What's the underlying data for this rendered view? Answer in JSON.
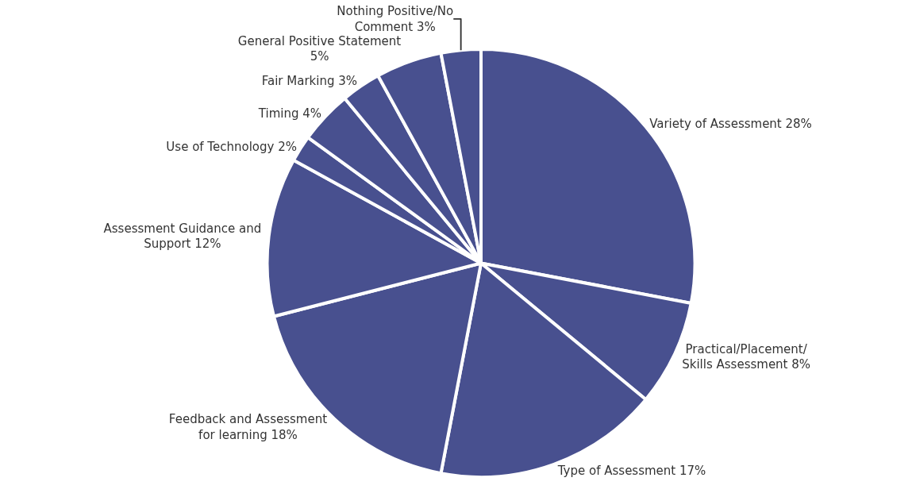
{
  "chart_data": {
    "type": "pie",
    "categories": [
      "Variety of Assessment",
      "Practical/Placement/ Skills Assessment",
      "Type of Assessment",
      "Feedback and Assessment for learning",
      "Assessment Guidance and Support",
      "Use of Technology",
      "Timing",
      "Fair Marking",
      "General Positive Statement",
      "Nothing Positive/No Comment"
    ],
    "values": [
      28,
      8,
      17,
      18,
      12,
      2,
      4,
      3,
      5,
      3
    ],
    "value_labels": [
      "28%",
      "8%",
      "17%",
      "18%",
      "12%",
      "2%",
      "4%",
      "3%",
      "5%",
      "3%"
    ],
    "colors": [
      "#48508f",
      "#48508f",
      "#48508f",
      "#48508f",
      "#48508f",
      "#48508f",
      "#48508f",
      "#48508f",
      "#48508f",
      "#48508f"
    ],
    "legend": false
  }
}
